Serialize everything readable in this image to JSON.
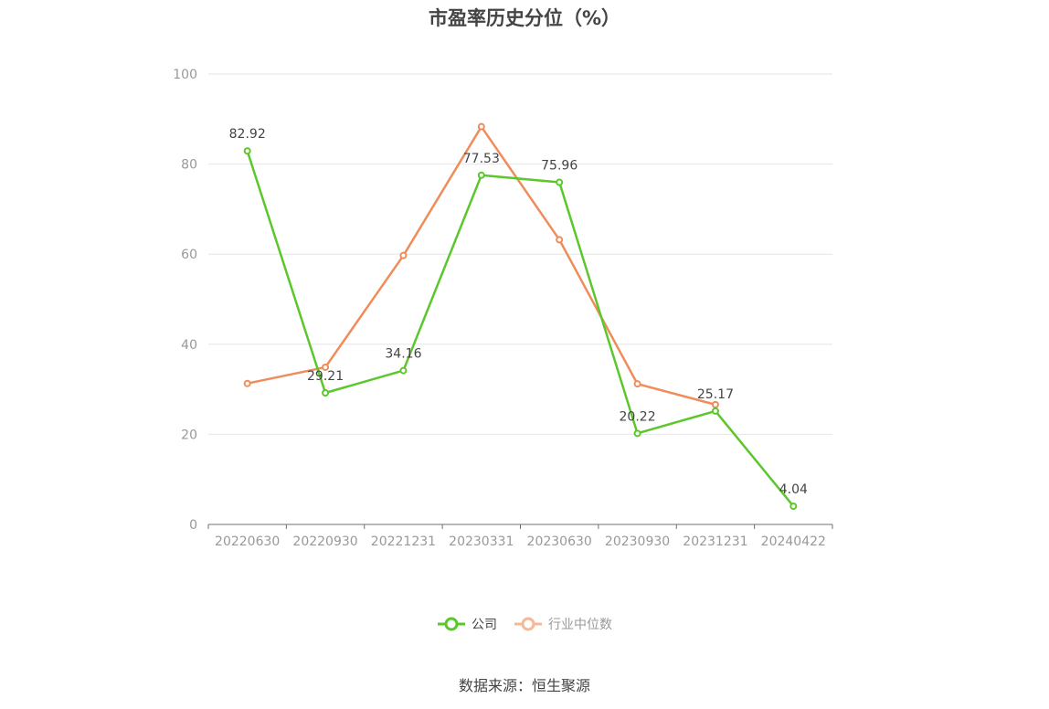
{
  "chart_data": {
    "type": "line",
    "title": "市盈率历史分位（%）",
    "categories": [
      "20220630",
      "20220930",
      "20221231",
      "20230331",
      "20230630",
      "20230930",
      "20231231",
      "20240422"
    ],
    "series": [
      {
        "name": "公司",
        "color": "#5cc72b",
        "values": [
          82.92,
          29.21,
          34.16,
          77.53,
          75.96,
          20.22,
          25.17,
          4.04
        ],
        "labels": [
          "82.92",
          "29.21",
          "34.16",
          "77.53",
          "75.96",
          "20.22",
          "25.17",
          "4.04"
        ]
      },
      {
        "name": "行业中位数",
        "color": "#f08c5a",
        "values": [
          31.3,
          34.9,
          59.7,
          88.3,
          63.2,
          31.2,
          26.6,
          null
        ]
      }
    ],
    "yticks": [
      "0",
      "20",
      "40",
      "60",
      "80",
      "100"
    ],
    "ylim": [
      0,
      100
    ],
    "grid": true,
    "legend_position": "bottom"
  },
  "legend": {
    "items": [
      {
        "label": "公司",
        "color": "#5cc72b",
        "text_color": "#444444"
      },
      {
        "label": "行业中位数",
        "color": "#f5b899",
        "text_color": "#999999"
      }
    ]
  },
  "source": "数据来源：恒生聚源"
}
